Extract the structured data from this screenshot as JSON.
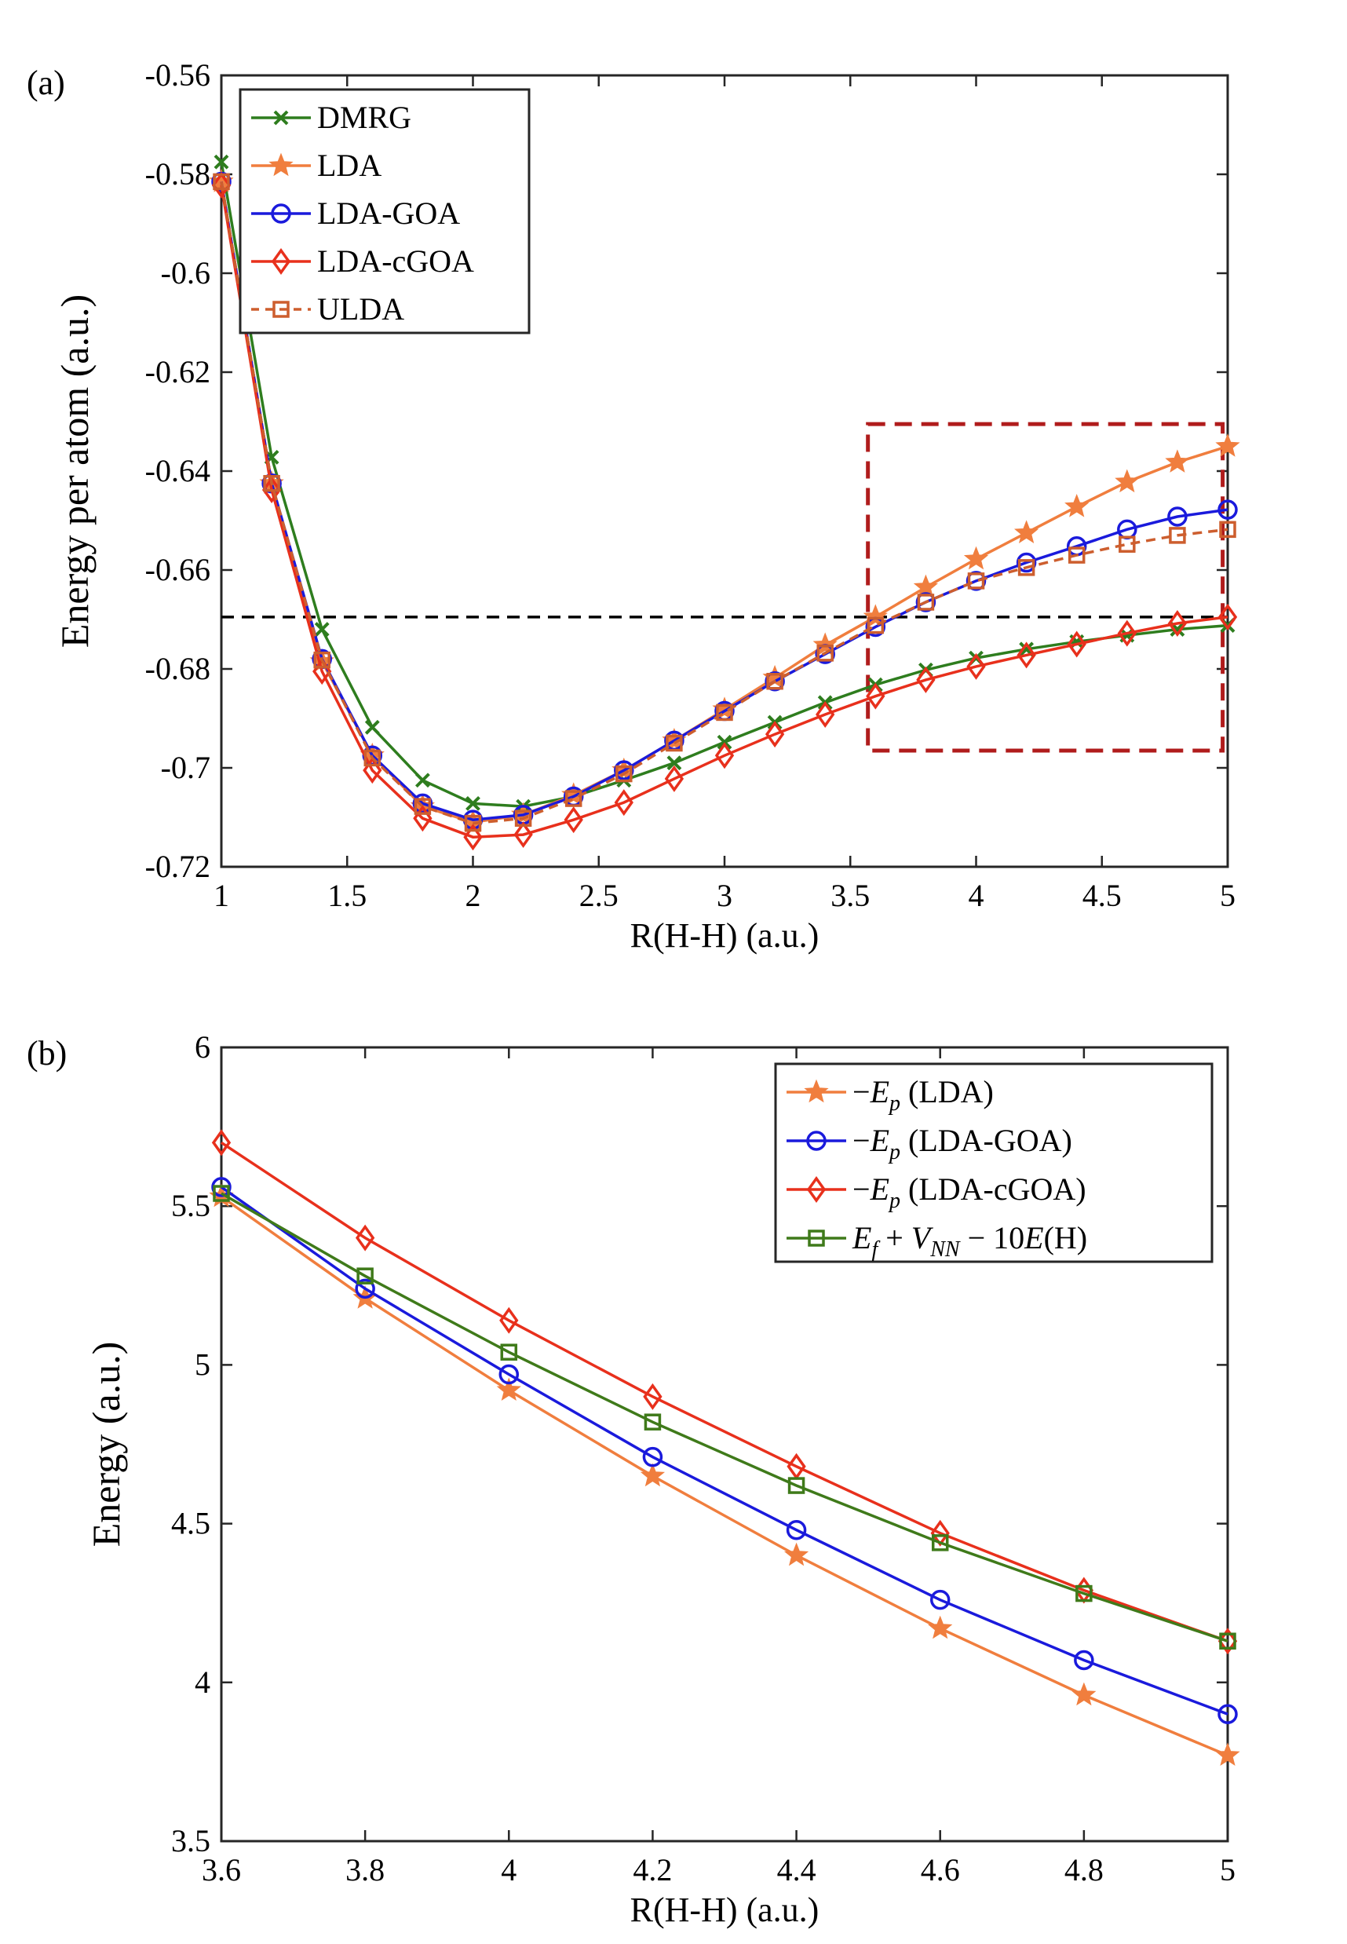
{
  "chart_data": [
    {
      "type": "line",
      "panel_label": "(a)",
      "xlabel": "R(H-H) (a.u.)",
      "ylabel": "Energy per atom (a.u.)",
      "xlim": [
        1,
        5
      ],
      "ylim": [
        -0.72,
        -0.56
      ],
      "xticks": [
        1,
        1.5,
        2,
        2.5,
        3,
        3.5,
        4,
        4.5,
        5
      ],
      "yticks": [
        -0.72,
        -0.7,
        -0.68,
        -0.66,
        -0.64,
        -0.62,
        -0.6,
        -0.58,
        -0.56
      ],
      "xtick_labels": [
        "1",
        "1.5",
        "2",
        "2.5",
        "3",
        "3.5",
        "4",
        "4.5",
        "5"
      ],
      "ytick_labels": [
        "-0.72",
        "-0.7",
        "-0.68",
        "-0.66",
        "-0.64",
        "-0.62",
        "-0.6",
        "-0.58",
        "-0.56"
      ],
      "legend_position": "top-left",
      "x": [
        1,
        1.2,
        1.4,
        1.6,
        1.8,
        2,
        2.2,
        2.4,
        2.6,
        2.8,
        3,
        3.2,
        3.4,
        3.6,
        3.8,
        4,
        4.2,
        4.4,
        4.6,
        4.8,
        5
      ],
      "series": [
        {
          "name": "DMRG",
          "color": "#2e7d1e",
          "marker": "x",
          "dash": false,
          "values": [
            -0.5775,
            -0.6372,
            -0.672,
            -0.6918,
            -0.7025,
            -0.7072,
            -0.7078,
            -0.7058,
            -0.7025,
            -0.699,
            -0.6948,
            -0.6908,
            -0.6868,
            -0.6832,
            -0.6802,
            -0.6778,
            -0.676,
            -0.6745,
            -0.6732,
            -0.672,
            -0.6712
          ]
        },
        {
          "name": "LDA",
          "color": "#f07e3e",
          "marker": "star",
          "dash": false,
          "values": [
            -0.5815,
            -0.6425,
            -0.6785,
            -0.6975,
            -0.7078,
            -0.711,
            -0.7095,
            -0.7055,
            -0.7005,
            -0.6945,
            -0.6882,
            -0.6818,
            -0.6752,
            -0.6695,
            -0.6635,
            -0.6578,
            -0.6525,
            -0.6472,
            -0.6422,
            -0.6382,
            -0.635
          ]
        },
        {
          "name": "LDA-GOA",
          "color": "#1a1adc",
          "marker": "circle",
          "dash": false,
          "values": [
            -0.5815,
            -0.6425,
            -0.678,
            -0.6975,
            -0.7072,
            -0.7105,
            -0.7095,
            -0.7058,
            -0.7005,
            -0.6945,
            -0.6885,
            -0.6825,
            -0.677,
            -0.6715,
            -0.6665,
            -0.6622,
            -0.6585,
            -0.6552,
            -0.6518,
            -0.6492,
            -0.6478
          ]
        },
        {
          "name": "LDA-cGOA",
          "color": "#e8301c",
          "marker": "diamond",
          "dash": false,
          "values": [
            -0.5822,
            -0.6438,
            -0.6805,
            -0.7005,
            -0.7102,
            -0.714,
            -0.7135,
            -0.7105,
            -0.707,
            -0.7022,
            -0.6975,
            -0.6932,
            -0.6892,
            -0.6855,
            -0.6822,
            -0.6795,
            -0.6772,
            -0.675,
            -0.6728,
            -0.6708,
            -0.6695
          ]
        },
        {
          "name": "ULDA",
          "color": "#cd5e2e",
          "marker": "square",
          "dash": true,
          "values": [
            -0.5815,
            -0.6425,
            -0.6782,
            -0.698,
            -0.7078,
            -0.7112,
            -0.7102,
            -0.7062,
            -0.7012,
            -0.695,
            -0.6888,
            -0.6825,
            -0.6768,
            -0.6712,
            -0.6665,
            -0.6622,
            -0.6595,
            -0.657,
            -0.6548,
            -0.653,
            -0.6518
          ]
        }
      ],
      "reference_line": {
        "y": -0.6695,
        "color": "#000000",
        "style": "dashed"
      },
      "highlight_box": {
        "x_range": [
          3.57,
          4.98
        ],
        "y_range": [
          -0.6965,
          -0.6305
        ],
        "color": "#b01c1c",
        "style": "dashed"
      }
    },
    {
      "type": "line",
      "panel_label": "(b)",
      "xlabel": "R(H-H) (a.u.)",
      "ylabel": "Energy (a.u.)",
      "xlim": [
        3.6,
        5
      ],
      "ylim": [
        3.5,
        6
      ],
      "xticks": [
        3.6,
        3.8,
        4,
        4.2,
        4.4,
        4.6,
        4.8,
        5
      ],
      "yticks": [
        3.5,
        4,
        4.5,
        5,
        5.5,
        6
      ],
      "xtick_labels": [
        "3.6",
        "3.8",
        "4",
        "4.2",
        "4.4",
        "4.6",
        "4.8",
        "5"
      ],
      "ytick_labels": [
        "3.5",
        "4",
        "4.5",
        "5",
        "5.5",
        "6"
      ],
      "legend_position": "top-right",
      "x": [
        3.6,
        3.8,
        4,
        4.2,
        4.4,
        4.6,
        4.8,
        5
      ],
      "series": [
        {
          "name": "−E_p (LDA)",
          "label_parts": [
            "−",
            "E",
            "p",
            " (LDA)"
          ],
          "color": "#f07e3e",
          "marker": "star",
          "values": [
            5.53,
            5.21,
            4.92,
            4.65,
            4.4,
            4.17,
            3.96,
            3.77
          ]
        },
        {
          "name": "−E_p (LDA-GOA)",
          "label_parts": [
            "−",
            "E",
            "p",
            " (LDA-GOA)"
          ],
          "color": "#1a1adc",
          "marker": "circle",
          "values": [
            5.56,
            5.24,
            4.97,
            4.71,
            4.48,
            4.26,
            4.07,
            3.9
          ]
        },
        {
          "name": "−E_p (LDA-cGOA)",
          "label_parts": [
            "−",
            "E",
            "p",
            " (LDA-cGOA)"
          ],
          "color": "#e8301c",
          "marker": "diamond",
          "values": [
            5.7,
            5.4,
            5.14,
            4.9,
            4.68,
            4.47,
            4.29,
            4.13
          ]
        },
        {
          "name": "E_f + V_NN − 10E(H)",
          "label_parts": [
            "E",
            "f",
            " + ",
            "V",
            "NN",
            " − 10",
            "E",
            "(H)"
          ],
          "color": "#3f7a1a",
          "marker": "square",
          "values": [
            5.54,
            5.28,
            5.04,
            4.82,
            4.62,
            4.44,
            4.28,
            4.13
          ]
        }
      ]
    }
  ]
}
